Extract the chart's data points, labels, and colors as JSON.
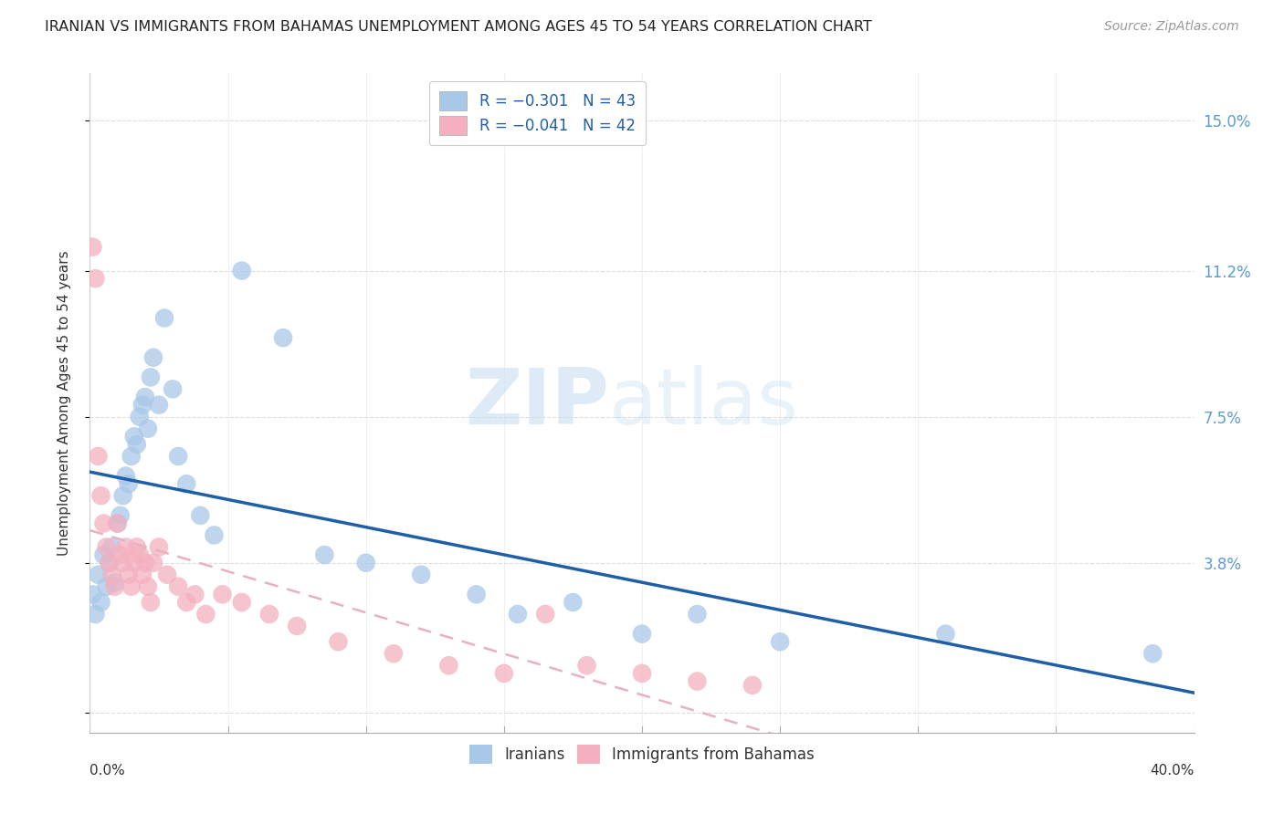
{
  "title": "IRANIAN VS IMMIGRANTS FROM BAHAMAS UNEMPLOYMENT AMONG AGES 45 TO 54 YEARS CORRELATION CHART",
  "source": "Source: ZipAtlas.com",
  "ylabel": "Unemployment Among Ages 45 to 54 years",
  "xlim": [
    0.0,
    0.4
  ],
  "ylim": [
    -0.005,
    0.162
  ],
  "yticks": [
    0.0,
    0.038,
    0.075,
    0.112,
    0.15
  ],
  "ytick_labels": [
    "",
    "3.8%",
    "7.5%",
    "11.2%",
    "15.0%"
  ],
  "xtick_left_label": "0.0%",
  "xtick_right_label": "40.0%",
  "iranians_x": [
    0.001,
    0.002,
    0.003,
    0.004,
    0.005,
    0.006,
    0.007,
    0.008,
    0.009,
    0.01,
    0.011,
    0.012,
    0.013,
    0.014,
    0.015,
    0.016,
    0.017,
    0.018,
    0.019,
    0.02,
    0.021,
    0.022,
    0.023,
    0.025,
    0.027,
    0.03,
    0.032,
    0.035,
    0.04,
    0.045,
    0.055,
    0.07,
    0.085,
    0.1,
    0.12,
    0.14,
    0.155,
    0.175,
    0.2,
    0.22,
    0.25,
    0.31,
    0.385
  ],
  "iranians_y": [
    0.03,
    0.025,
    0.035,
    0.028,
    0.04,
    0.032,
    0.038,
    0.042,
    0.033,
    0.048,
    0.05,
    0.055,
    0.06,
    0.058,
    0.065,
    0.07,
    0.068,
    0.075,
    0.078,
    0.08,
    0.072,
    0.085,
    0.09,
    0.078,
    0.1,
    0.082,
    0.065,
    0.058,
    0.05,
    0.045,
    0.112,
    0.095,
    0.04,
    0.038,
    0.035,
    0.03,
    0.025,
    0.028,
    0.02,
    0.025,
    0.018,
    0.02,
    0.015
  ],
  "bahamas_x": [
    0.001,
    0.002,
    0.003,
    0.004,
    0.005,
    0.006,
    0.007,
    0.008,
    0.009,
    0.01,
    0.011,
    0.012,
    0.013,
    0.014,
    0.015,
    0.016,
    0.017,
    0.018,
    0.019,
    0.02,
    0.021,
    0.022,
    0.023,
    0.025,
    0.028,
    0.032,
    0.035,
    0.038,
    0.042,
    0.048,
    0.055,
    0.065,
    0.075,
    0.09,
    0.11,
    0.13,
    0.15,
    0.165,
    0.18,
    0.2,
    0.22,
    0.24
  ],
  "bahamas_y": [
    0.118,
    0.11,
    0.065,
    0.055,
    0.048,
    0.042,
    0.038,
    0.035,
    0.032,
    0.048,
    0.04,
    0.038,
    0.042,
    0.035,
    0.032,
    0.038,
    0.042,
    0.04,
    0.035,
    0.038,
    0.032,
    0.028,
    0.038,
    0.042,
    0.035,
    0.032,
    0.028,
    0.03,
    0.025,
    0.03,
    0.028,
    0.025,
    0.022,
    0.018,
    0.015,
    0.012,
    0.01,
    0.025,
    0.012,
    0.01,
    0.008,
    0.007
  ],
  "blue_scatter_color": "#a8c8e8",
  "pink_scatter_color": "#f4b0c0",
  "blue_line_color": "#1f5fa6",
  "pink_line_color": "#e8b0c0",
  "watermark_zip_color": "#c8dff0",
  "watermark_atlas_color": "#c8dff0",
  "background_color": "#ffffff",
  "grid_color": "#dddddd",
  "right_axis_color": "#5b9bd5",
  "legend_text_color": "#1f5fa6"
}
